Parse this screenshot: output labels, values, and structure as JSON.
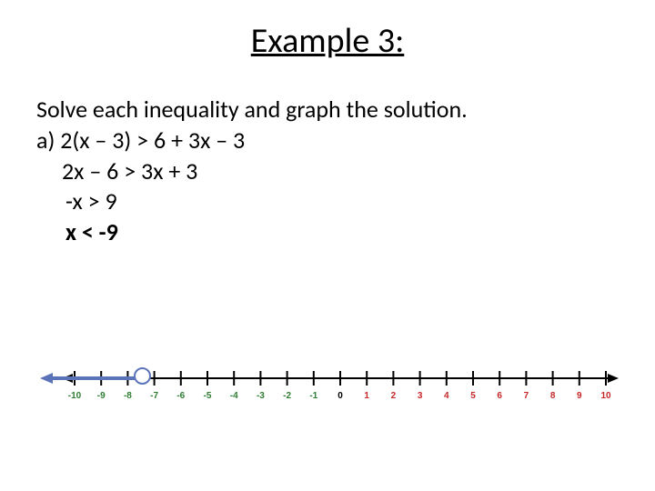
{
  "title": "Example 3:",
  "instruction": "Solve each inequality and graph the solution.",
  "lines": {
    "l0": "a) 2(x – 3) > 6 + 3x – 3",
    "l1": "2x – 6 > 3x + 3",
    "l2": "-x > 9",
    "l3": "x < -9"
  },
  "numberline": {
    "min": -10,
    "max": 10,
    "ticks": [
      -10,
      -9,
      -8,
      -7,
      -6,
      -5,
      -4,
      -3,
      -2,
      -1,
      0,
      1,
      2,
      3,
      4,
      5,
      6,
      7,
      8,
      9,
      10
    ],
    "negative_color": "#2e7d32",
    "positive_color": "#c62828",
    "axis_color": "#000000",
    "tick_fontsize": 10,
    "open_circle_value": -9,
    "arrow_color": "#5b73b9"
  }
}
